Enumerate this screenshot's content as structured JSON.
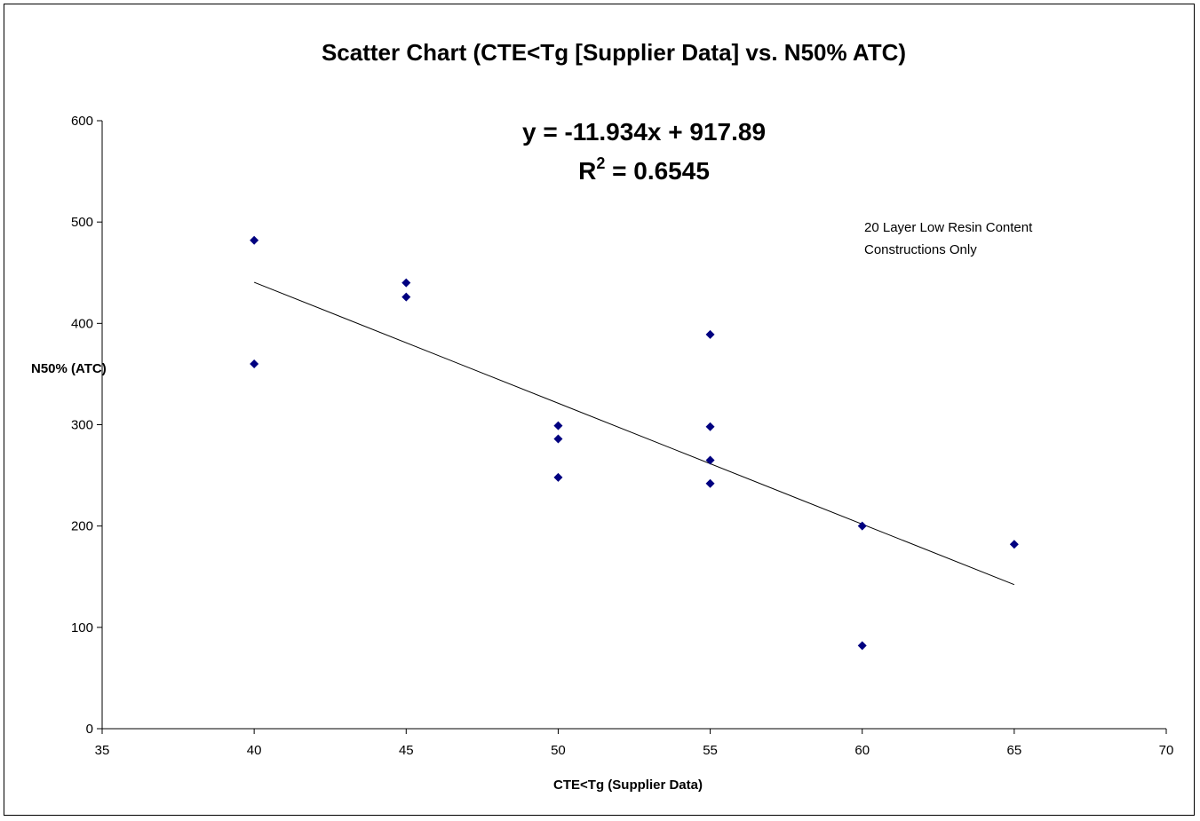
{
  "chart_data": {
    "type": "scatter",
    "title": "Scatter Chart (CTE<Tg [Supplier Data] vs. N50% ATC)",
    "xlabel": "CTE<Tg (Supplier Data)",
    "ylabel": "N50% (ATC)",
    "xlim": [
      35,
      70
    ],
    "ylim": [
      0,
      600
    ],
    "xticks": [
      35,
      40,
      45,
      50,
      55,
      60,
      65,
      70
    ],
    "yticks": [
      0,
      100,
      200,
      300,
      400,
      500,
      600
    ],
    "grid": false,
    "series": [
      {
        "color": "#000080",
        "marker": "diamond",
        "points": [
          {
            "x": 40,
            "y": 482
          },
          {
            "x": 40,
            "y": 360
          },
          {
            "x": 45,
            "y": 440
          },
          {
            "x": 45,
            "y": 426
          },
          {
            "x": 50,
            "y": 299
          },
          {
            "x": 50,
            "y": 286
          },
          {
            "x": 50,
            "y": 248
          },
          {
            "x": 55,
            "y": 389
          },
          {
            "x": 55,
            "y": 298
          },
          {
            "x": 55,
            "y": 265
          },
          {
            "x": 55,
            "y": 242
          },
          {
            "x": 60,
            "y": 200
          },
          {
            "x": 60,
            "y": 82
          },
          {
            "x": 65,
            "y": 182
          }
        ]
      }
    ],
    "trendline": {
      "slope": -11.934,
      "intercept": 917.89,
      "x_range": [
        40,
        65
      ],
      "color": "#000000",
      "equation_label": "y = -11.934x + 917.89",
      "r2_prefix": "R",
      "r2_exponent": "2",
      "r2_value": " = 0.6545"
    },
    "annotation": {
      "lines": [
        "20 Layer Low Resin Content",
        "Constructions Only"
      ]
    }
  }
}
